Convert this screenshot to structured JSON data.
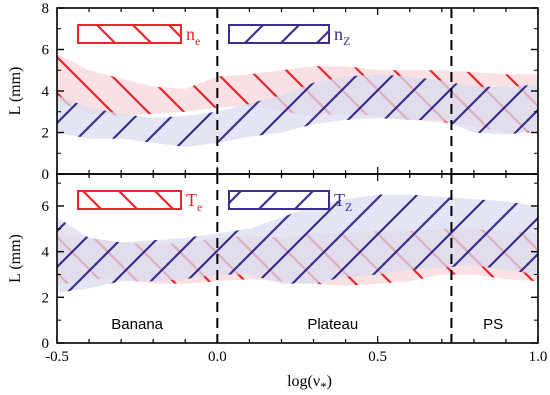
{
  "chart_data": [
    {
      "type": "area",
      "panel": "top",
      "ylabel": "L (mm)",
      "ylim": [
        0,
        8
      ],
      "yticks": [
        "0",
        "2",
        "4",
        "6",
        "8"
      ],
      "xlim": [
        -0.5,
        1.0
      ],
      "legend_position": "top-left",
      "series": [
        {
          "name_main": "n",
          "name_sub": "e",
          "color": "#e8262b",
          "fill": "#f7d6d9",
          "hatch": "backslash",
          "x": [
            -0.5,
            -0.4,
            -0.3,
            -0.2,
            -0.1,
            0.0,
            0.1,
            0.2,
            0.3,
            0.4,
            0.5,
            0.6,
            0.7,
            0.8,
            0.9,
            1.0
          ],
          "lower": [
            3.5,
            2.9,
            2.8,
            2.9,
            3.0,
            3.2,
            3.3,
            3.0,
            2.8,
            2.9,
            2.8,
            2.6,
            2.5,
            2.3,
            2.0,
            2.0
          ],
          "upper": [
            5.8,
            5.0,
            4.6,
            4.2,
            4.1,
            4.7,
            4.8,
            5.0,
            5.2,
            5.2,
            5.0,
            5.0,
            5.0,
            4.9,
            4.8,
            4.8
          ]
        },
        {
          "name_main": "n",
          "name_sub": "Z",
          "color": "#3a2e8f",
          "fill": "#d9dcf0",
          "hatch": "slash",
          "x": [
            -0.5,
            -0.4,
            -0.3,
            -0.2,
            -0.1,
            0.0,
            0.1,
            0.2,
            0.3,
            0.4,
            0.5,
            0.6,
            0.7,
            0.8,
            0.9,
            1.0
          ],
          "lower": [
            2.0,
            1.7,
            1.7,
            1.5,
            1.3,
            1.5,
            1.8,
            2.0,
            2.4,
            2.6,
            2.7,
            2.6,
            2.6,
            2.0,
            1.9,
            2.1
          ],
          "upper": [
            3.8,
            3.2,
            2.9,
            2.7,
            2.8,
            3.0,
            3.4,
            3.8,
            4.4,
            4.7,
            4.8,
            4.7,
            4.5,
            4.2,
            4.2,
            4.3
          ]
        }
      ]
    },
    {
      "type": "area",
      "panel": "bottom",
      "ylabel": "L (mm)",
      "ylim": [
        0,
        7.4
      ],
      "yticks": [
        "0",
        "2",
        "4",
        "6"
      ],
      "xlim": [
        -0.5,
        1.0
      ],
      "xlabel_main": "log(ν",
      "xlabel_sub": "*",
      "xlabel_close": ")",
      "xticks": [
        "-0.5",
        "0.0",
        "0.5",
        "1.0"
      ],
      "legend_position": "top-left",
      "series": [
        {
          "name_main": "T",
          "name_sub": "e",
          "color": "#e8262b",
          "fill": "#f7d6d9",
          "hatch": "backslash",
          "x": [
            -0.5,
            -0.4,
            -0.3,
            -0.2,
            -0.1,
            0.0,
            0.1,
            0.2,
            0.3,
            0.4,
            0.5,
            0.6,
            0.7,
            0.8,
            0.9,
            1.0
          ],
          "lower": [
            2.5,
            2.8,
            2.8,
            2.6,
            2.6,
            2.7,
            2.8,
            2.7,
            2.6,
            2.5,
            2.6,
            2.7,
            3.0,
            3.0,
            2.8,
            2.7
          ],
          "upper": [
            4.8,
            4.6,
            4.4,
            4.3,
            4.4,
            4.6,
            4.7,
            4.6,
            4.8,
            4.8,
            4.9,
            4.9,
            5.0,
            5.0,
            4.9,
            4.8
          ]
        },
        {
          "name_main": "T",
          "name_sub": "Z",
          "color": "#3a2e8f",
          "fill": "#d9dcf0",
          "hatch": "slash",
          "x": [
            -0.5,
            -0.4,
            -0.3,
            -0.2,
            -0.1,
            0.0,
            0.1,
            0.2,
            0.3,
            0.4,
            0.5,
            0.6,
            0.7,
            0.8,
            0.9,
            1.0
          ],
          "lower": [
            2.2,
            2.4,
            2.7,
            2.7,
            2.8,
            3.0,
            3.0,
            2.6,
            2.6,
            2.9,
            3.0,
            3.2,
            3.3,
            3.4,
            3.2,
            3.0
          ],
          "upper": [
            5.5,
            4.6,
            4.4,
            4.5,
            4.6,
            4.8,
            5.0,
            5.5,
            6.0,
            6.3,
            6.5,
            6.5,
            6.4,
            6.3,
            6.2,
            6.0
          ]
        }
      ],
      "regions": [
        {
          "label": "Banana",
          "x_center": -0.25
        },
        {
          "label": "Plateau",
          "x_center": 0.36
        },
        {
          "label": "PS",
          "x_center": 0.86
        }
      ]
    }
  ],
  "dividers_x": [
    0.0,
    0.73
  ]
}
